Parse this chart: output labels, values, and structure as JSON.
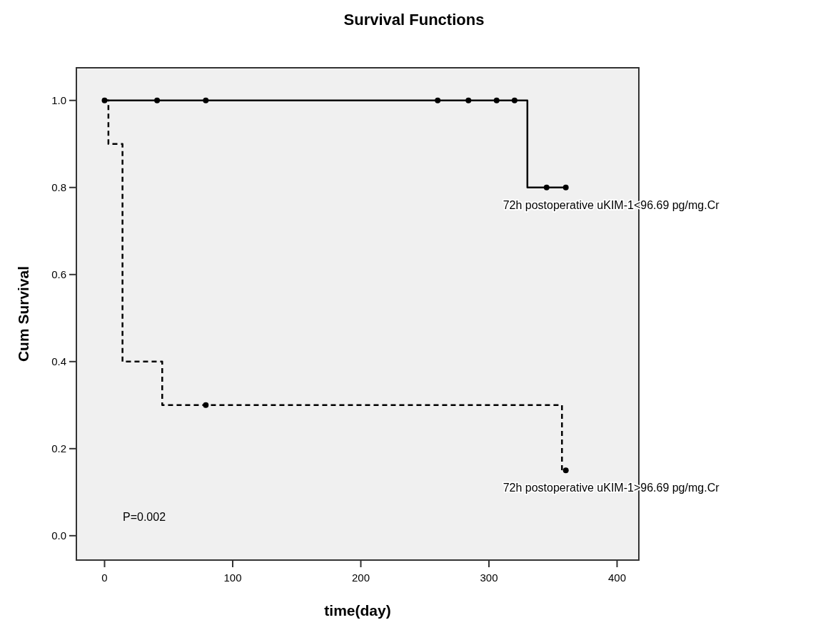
{
  "chart_data": {
    "type": "step",
    "title": "Survival Functions",
    "xlabel": "time(day)",
    "ylabel": "Cum Survival",
    "xlim": [
      -22,
      417
    ],
    "xticks": [
      0,
      100,
      200,
      300,
      400
    ],
    "ylim": [
      -0.056,
      1.075
    ],
    "yticks": [
      {
        "value": 0,
        "label": "0.0"
      },
      {
        "value": 0.2,
        "label": "0.2"
      },
      {
        "value": 0.4,
        "label": "0.4"
      },
      {
        "value": 0.6,
        "label": "0.6"
      },
      {
        "value": 0.8,
        "label": "0.8"
      },
      {
        "value": 1,
        "label": "1.0"
      }
    ],
    "grid": false,
    "series": [
      {
        "name": "72h postoperative uKIM-1<96.69 pg/mg.Cr",
        "color": "#000000",
        "line_style": "solid",
        "x": [
          0,
          330,
          360
        ],
        "values": [
          1,
          0.8,
          0.8
        ]
      },
      {
        "name": "72h postoperative uKIM-1>96.69 pg/mg.Cr",
        "color": "#000000",
        "line_style": "dashed",
        "x": [
          0,
          3,
          14,
          45,
          357,
          360
        ],
        "values": [
          1,
          0.9,
          0.4,
          0.3,
          0.15,
          0.15
        ]
      },
      {
        "type": "scatter",
        "color": "#000000",
        "marker": "circle",
        "x": [
          0,
          41,
          79,
          260,
          284,
          306,
          320,
          345,
          360
        ],
        "values": [
          1,
          1,
          1,
          1,
          1,
          1,
          1,
          0.8,
          0.8
        ]
      },
      {
        "type": "scatter",
        "color": "#000000",
        "marker": "circle",
        "x": [
          79,
          360
        ],
        "values": [
          0.3,
          0.15
        ]
      }
    ],
    "annotations": [
      "P=0.002"
    ]
  }
}
